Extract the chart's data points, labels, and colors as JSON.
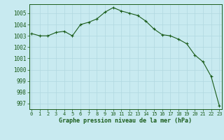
{
  "x": [
    0,
    1,
    2,
    3,
    4,
    5,
    6,
    7,
    8,
    9,
    10,
    11,
    12,
    13,
    14,
    15,
    16,
    17,
    18,
    19,
    20,
    21,
    22,
    23
  ],
  "y": [
    1003.2,
    1003.0,
    1003.0,
    1003.3,
    1003.4,
    1003.0,
    1004.0,
    1004.2,
    1004.5,
    1005.1,
    1005.5,
    1005.2,
    1005.0,
    1004.8,
    1004.3,
    1003.6,
    1003.1,
    1003.0,
    1002.7,
    1002.3,
    1001.3,
    1000.7,
    999.4,
    996.8
  ],
  "line_color": "#1a5c1a",
  "marker": "+",
  "marker_color": "#1a5c1a",
  "background_color": "#c8eaf0",
  "grid_color": "#b0d8e0",
  "xlabel": "Graphe pression niveau de la mer (hPa)",
  "xlabel_color": "#1a5c1a",
  "tick_color": "#1a5c1a",
  "spine_color": "#1a5c1a",
  "ylim": [
    996.5,
    1005.8
  ],
  "yticks": [
    997,
    998,
    999,
    1000,
    1001,
    1002,
    1003,
    1004,
    1005
  ],
  "xticks": [
    0,
    1,
    2,
    3,
    4,
    5,
    6,
    7,
    8,
    9,
    10,
    11,
    12,
    13,
    14,
    15,
    16,
    17,
    18,
    19,
    20,
    21,
    22,
    23
  ],
  "figsize": [
    3.2,
    2.0
  ],
  "dpi": 100
}
